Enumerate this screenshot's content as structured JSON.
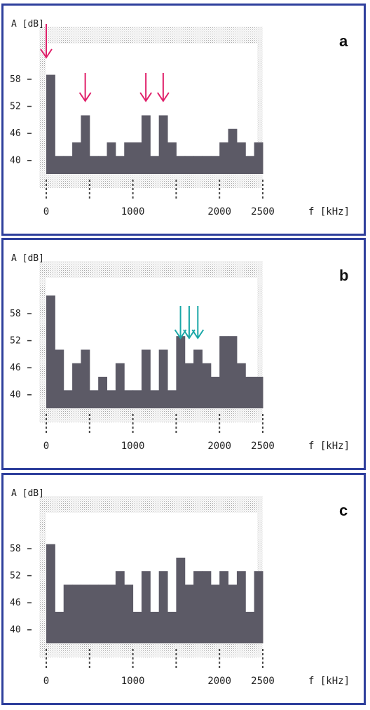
{
  "colors": {
    "bar": "#5c5a66",
    "panel_border": "#2e3f9c",
    "dots": "#bdbdbd",
    "arrow_a": "#e0206a",
    "arrow_b": "#1aa7a7"
  },
  "chart_data": [
    {
      "type": "bar",
      "panel_label": "a",
      "ylabel": "A  [dB]",
      "xlabel": "f  [kHz]",
      "yticks": [
        "58",
        "52",
        "46",
        "40"
      ],
      "ytick_values": [
        58,
        52,
        46,
        40
      ],
      "xticks": [
        "0",
        "1000",
        "2000",
        "2500"
      ],
      "xtick_values": [
        0,
        1000,
        2000,
        2500
      ],
      "xlim": [
        0,
        2500
      ],
      "ylim": [
        37,
        65
      ],
      "bar_width": 100,
      "x": [
        0,
        100,
        200,
        300,
        400,
        500,
        600,
        700,
        800,
        900,
        1000,
        1100,
        1200,
        1300,
        1400,
        1500,
        1600,
        1700,
        1800,
        1900,
        2000,
        2100,
        2200,
        2300,
        2400
      ],
      "values": [
        59,
        41,
        41,
        44,
        50,
        41,
        41,
        44,
        41,
        44,
        44,
        50,
        41,
        50,
        44,
        41,
        41,
        41,
        41,
        41,
        44,
        47,
        44,
        41,
        44
      ],
      "arrows_at": [
        0,
        450,
        1150,
        1350
      ],
      "arrow_color": "arrow_a"
    },
    {
      "type": "bar",
      "panel_label": "b",
      "ylabel": "A  [dB]",
      "xlabel": "f  [kHz]",
      "yticks": [
        "58",
        "52",
        "46",
        "40"
      ],
      "ytick_values": [
        58,
        52,
        46,
        40
      ],
      "xticks": [
        "0",
        "1000",
        "2000",
        "2500"
      ],
      "xtick_values": [
        0,
        1000,
        2000,
        2500
      ],
      "xlim": [
        0,
        2500
      ],
      "ylim": [
        37,
        65
      ],
      "bar_width": 100,
      "x": [
        0,
        100,
        200,
        300,
        400,
        500,
        600,
        700,
        800,
        900,
        1000,
        1100,
        1200,
        1300,
        1400,
        1500,
        1600,
        1700,
        1800,
        1900,
        2000,
        2100,
        2200,
        2300,
        2400
      ],
      "values": [
        62,
        50,
        41,
        47,
        50,
        41,
        44,
        41,
        47,
        41,
        41,
        50,
        41,
        50,
        41,
        53,
        47,
        50,
        47,
        44,
        53,
        53,
        47,
        44,
        44
      ],
      "arrows_at": [
        1550,
        1650,
        1750
      ],
      "arrow_color": "arrow_b"
    },
    {
      "type": "bar",
      "panel_label": "c",
      "ylabel": "A  [dB]",
      "xlabel": "f  [kHz]",
      "yticks": [
        "58",
        "52",
        "46",
        "40"
      ],
      "ytick_values": [
        58,
        52,
        46,
        40
      ],
      "xticks": [
        "0",
        "1000",
        "2000",
        "2500"
      ],
      "xtick_values": [
        0,
        1000,
        2000,
        2500
      ],
      "xlim": [
        0,
        2500
      ],
      "ylim": [
        37,
        65
      ],
      "bar_width": 100,
      "x": [
        0,
        100,
        200,
        300,
        400,
        500,
        600,
        700,
        800,
        900,
        1000,
        1100,
        1200,
        1300,
        1400,
        1500,
        1600,
        1700,
        1800,
        1900,
        2000,
        2100,
        2200,
        2300,
        2400
      ],
      "values": [
        59,
        44,
        50,
        50,
        50,
        50,
        50,
        50,
        53,
        50,
        44,
        53,
        44,
        53,
        44,
        56,
        50,
        53,
        53,
        50,
        53,
        50,
        53,
        44,
        53
      ],
      "arrows_at": [],
      "arrow_color": "arrow_a"
    }
  ]
}
